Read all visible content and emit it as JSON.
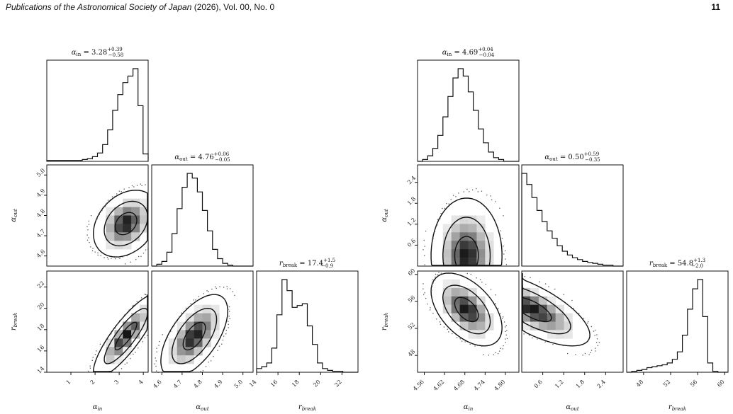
{
  "header": {
    "journal_italic": "Publications of the Astronomical Society of Japan",
    "journal_rest": " (2026), Vol. 00, No. 0",
    "page_number": "11"
  },
  "chart_data": [
    {
      "type": "heatmap",
      "name": "corner-plot-left",
      "parameters": [
        "α_in",
        "α_out",
        "r_break"
      ],
      "axis_labels": [
        "α",
        "α",
        "r"
      ],
      "axis_label_subscripts": [
        "in",
        "out",
        "break"
      ],
      "titles": [
        {
          "sym": "α",
          "sub": "in",
          "val": "3.28",
          "up": "+0.39",
          "lo": "−0.58"
        },
        {
          "sym": "α",
          "sub": "out",
          "val": "4.76",
          "up": "+0.06",
          "lo": "−0.05"
        },
        {
          "sym": "r",
          "sub": "break",
          "val": "17.4",
          "up": "+1.5",
          "lo": "−0.9"
        }
      ],
      "ranges": [
        [
          0,
          4.2
        ],
        [
          4.55,
          5.05
        ],
        [
          14,
          23.5
        ]
      ],
      "ticks": [
        [
          "1",
          "2",
          "3",
          "4"
        ],
        [
          "4.6",
          "4.7",
          "4.8",
          "4.9",
          "5.0"
        ],
        [
          "14",
          "16",
          "18",
          "20",
          "22"
        ]
      ],
      "tick_values": [
        [
          1,
          2,
          3,
          4
        ],
        [
          4.6,
          4.7,
          4.8,
          4.9,
          5.0
        ],
        [
          14,
          16,
          18,
          20,
          22
        ]
      ],
      "histograms": [
        [
          1,
          1,
          1,
          1,
          1,
          1,
          1,
          2,
          3,
          5,
          9,
          18,
          34,
          55,
          72,
          85,
          92,
          100,
          60,
          8
        ],
        [
          0,
          2,
          5,
          15,
          35,
          62,
          85,
          100,
          95,
          80,
          60,
          38,
          18,
          8,
          3,
          1,
          0,
          0,
          0,
          0
        ],
        [
          4,
          6,
          10,
          26,
          62,
          100,
          88,
          70,
          72,
          74,
          50,
          30,
          10,
          4,
          2,
          1,
          1,
          0,
          0,
          0
        ]
      ],
      "peaks": [
        {
          "x": 3.28,
          "y": 4.76,
          "sx": 0.45,
          "sy": 0.055,
          "rho": 0.3
        },
        {
          "x": 3.28,
          "y": 17.4,
          "sx": 0.45,
          "sy": 1.3,
          "rho": 0.85
        },
        {
          "x": 4.76,
          "y": 17.4,
          "sx": 0.055,
          "sy": 1.3,
          "rho": 0.6
        }
      ]
    },
    {
      "type": "heatmap",
      "name": "corner-plot-right",
      "parameters": [
        "α_in",
        "α_out",
        "r_break"
      ],
      "axis_labels": [
        "α",
        "α",
        "r"
      ],
      "axis_label_subscripts": [
        "in",
        "out",
        "break"
      ],
      "titles": [
        {
          "sym": "α",
          "sub": "in",
          "val": "4.69",
          "up": "+0.04",
          "lo": "−0.04"
        },
        {
          "sym": "α",
          "sub": "out",
          "val": "0.50",
          "up": "+0.59",
          "lo": "−0.35"
        },
        {
          "sym": "r",
          "sub": "break",
          "val": "54.8",
          "up": "+1.3",
          "lo": "−2.0"
        }
      ],
      "ranges": [
        [
          4.54,
          4.84
        ],
        [
          0.0,
          2.9
        ],
        [
          45.5,
          60.5
        ]
      ],
      "ticks": [
        [
          "4.56",
          "4.62",
          "4.68",
          "4.74",
          "4.80"
        ],
        [
          "0.6",
          "1.2",
          "1.8",
          "2.4"
        ],
        [
          "48",
          "52",
          "56",
          "60"
        ]
      ],
      "tick_values": [
        [
          4.56,
          4.62,
          4.68,
          4.74,
          4.8
        ],
        [
          0.6,
          1.2,
          1.8,
          2.4
        ],
        [
          48,
          52,
          56,
          60
        ]
      ],
      "histograms": [
        [
          0,
          2,
          6,
          14,
          28,
          48,
          70,
          90,
          100,
          92,
          75,
          55,
          35,
          20,
          10,
          4,
          2,
          0,
          0,
          0
        ],
        [
          100,
          88,
          74,
          60,
          48,
          38,
          30,
          22,
          16,
          12,
          9,
          7,
          5,
          4,
          3,
          2,
          1,
          1,
          0,
          0
        ],
        [
          0,
          1,
          2,
          3,
          5,
          6,
          7,
          8,
          10,
          14,
          22,
          40,
          68,
          90,
          100,
          60,
          10,
          1,
          0,
          0
        ]
      ],
      "peaks": [
        {
          "x": 4.685,
          "y": 0.3,
          "sx": 0.035,
          "sy": 0.55,
          "rho": 0.0
        },
        {
          "x": 4.685,
          "y": 54.8,
          "sx": 0.035,
          "sy": 1.8,
          "rho": -0.5
        },
        {
          "x": 0.3,
          "y": 54.8,
          "sx": 0.55,
          "sy": 1.8,
          "rho": -0.7
        }
      ]
    }
  ]
}
